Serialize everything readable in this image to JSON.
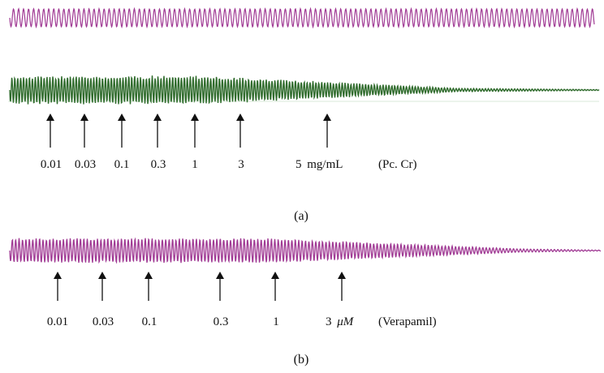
{
  "colors": {
    "magenta": "#a03a94",
    "green": "#2f6b2c",
    "text": "#111111"
  },
  "top_trace": {
    "color": "magenta"
  },
  "panel_a": {
    "caption": "(a)",
    "trace_color": "green",
    "doses": [
      "0.01",
      "0.03",
      "0.1",
      "0.3",
      "1",
      "3"
    ],
    "last_dose": "5",
    "unit": "mg/mL",
    "agent": "(Pc. Cr)"
  },
  "panel_b": {
    "caption": "(b)",
    "trace_color": "magenta",
    "doses": [
      "0.01",
      "0.03",
      "0.1",
      "0.3",
      "1"
    ],
    "last_dose": "3",
    "unit": "μM",
    "agent": "(Verapamil)"
  }
}
